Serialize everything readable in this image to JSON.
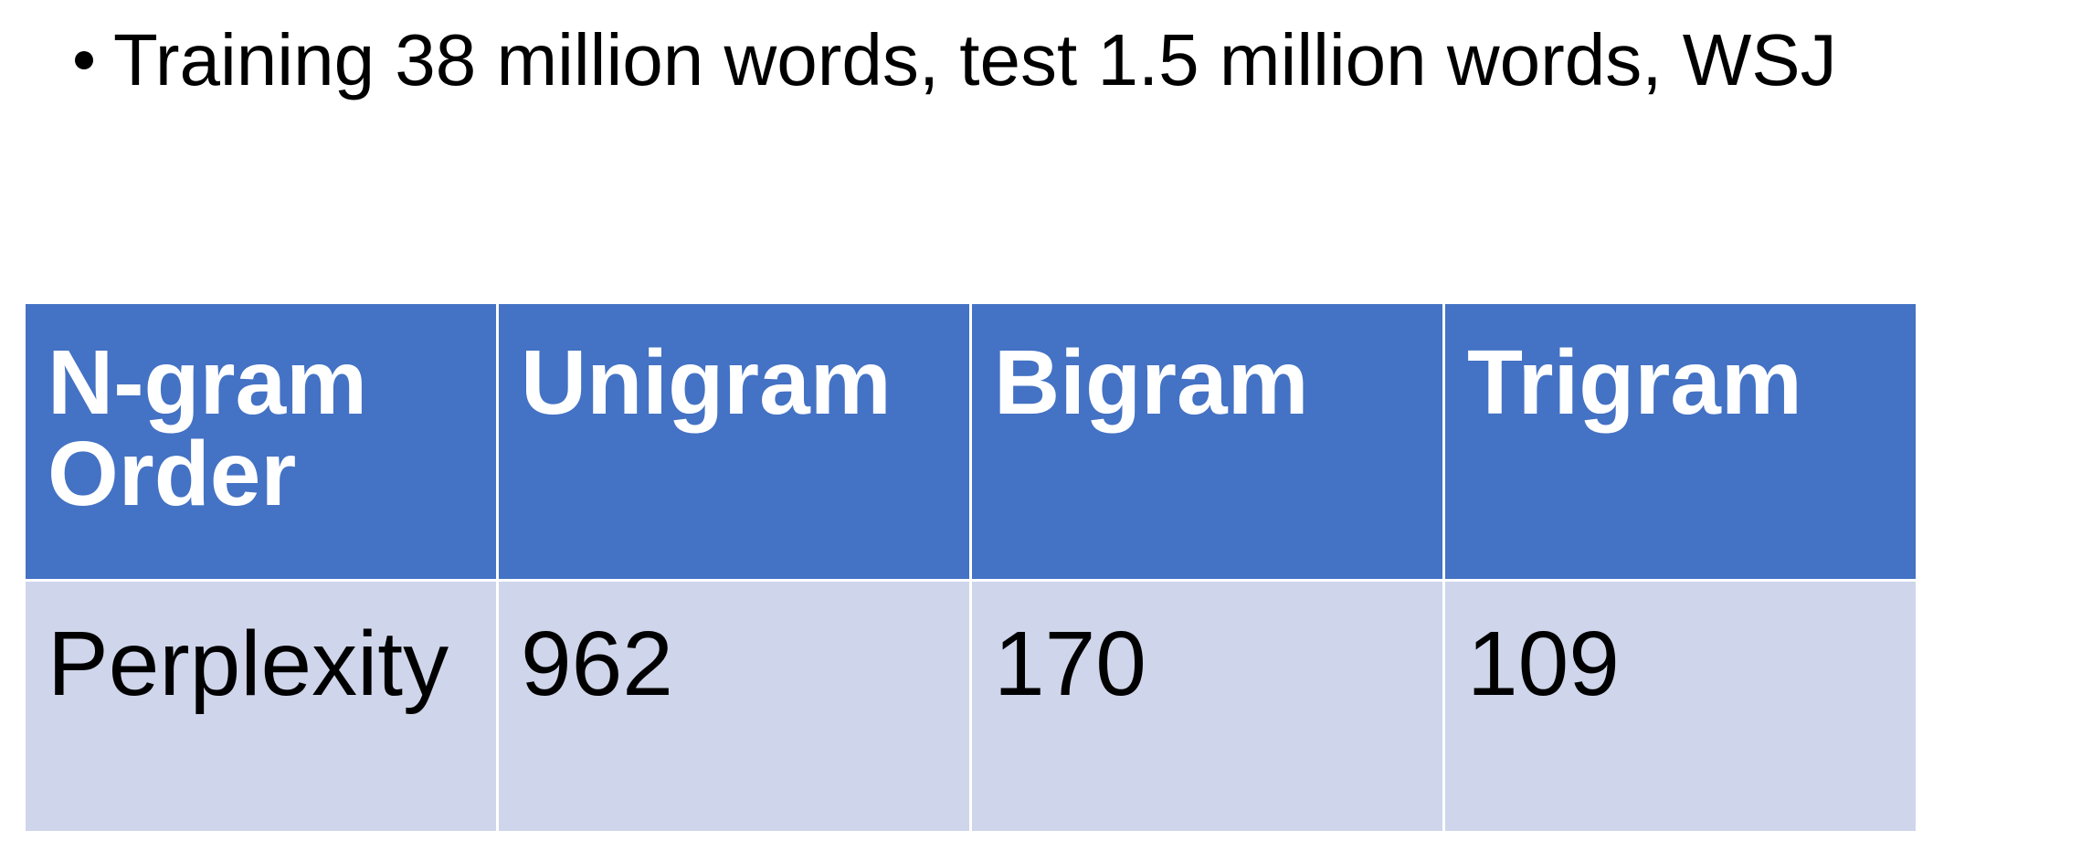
{
  "bullets": [
    "Training 38 million words, test 1.5 million words, WSJ"
  ],
  "table": {
    "header": [
      "N-gram Order",
      "Unigram",
      "Bigram",
      "Trigram"
    ],
    "row": [
      "Perplexity",
      "962",
      "170",
      "109"
    ]
  },
  "colors": {
    "header_bg": "#4472c4",
    "header_text": "#ffffff",
    "row_bg": "#cfd5ea",
    "row_text": "#000000"
  }
}
